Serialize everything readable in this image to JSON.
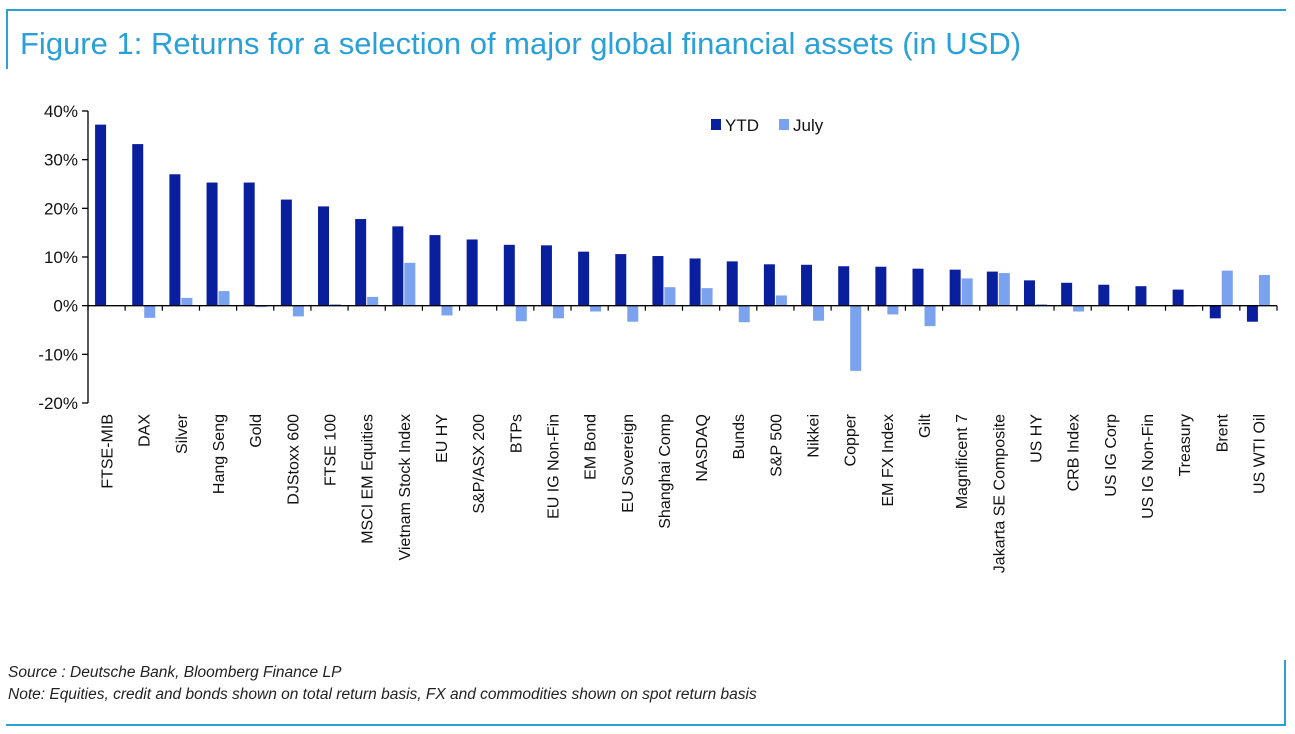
{
  "title": "Figure 1: Returns for a selection of major global financial assets (in USD)",
  "source": "Source : Deutsche Bank, Bloomberg Finance LP",
  "note": "Note: Equities, credit and bonds shown on total return basis, FX and commodities shown on spot return basis",
  "colors": {
    "accent": "#2aa0d8",
    "ytd": "#0a1f9e",
    "july": "#7aa2ee"
  },
  "chart_data": {
    "type": "bar",
    "title": "",
    "xlabel": "",
    "ylabel": "",
    "ylim": [
      -20,
      40
    ],
    "yticks": [
      40,
      30,
      20,
      10,
      0,
      -10,
      -20
    ],
    "ytick_labels": [
      "40%",
      "30%",
      "20%",
      "10%",
      "0%",
      "-10%",
      "-20%"
    ],
    "legend_position": "top-right",
    "grid": false,
    "categories": [
      "FTSE-MIB",
      "DAX",
      "Silver",
      "Hang Seng",
      "Gold",
      "DJStoxx 600",
      "FTSE 100",
      "MSCI EM Equities",
      "Vietnam Stock Index",
      "EU HY",
      "S&P/ASX 200",
      "BTPs",
      "EU IG Non-Fin",
      "EM Bond",
      "EU Sovereign",
      "Shanghai Comp",
      "NASDAQ",
      "Bunds",
      "S&P 500",
      "Nikkei",
      "Copper",
      "EM FX Index",
      "Gilt",
      "Magnificent 7",
      "Jakarta SE Composite",
      "US HY",
      "CRB Index",
      "US IG Corp",
      "US IG Non-Fin",
      "Treasury",
      "Brent",
      "US WTI Oil"
    ],
    "series": [
      {
        "name": "YTD",
        "values": [
          37.2,
          33.2,
          27.0,
          25.3,
          25.3,
          21.8,
          20.4,
          17.8,
          16.3,
          14.5,
          13.6,
          12.5,
          12.4,
          11.1,
          10.6,
          10.2,
          9.7,
          9.1,
          8.5,
          8.4,
          8.1,
          8.0,
          7.6,
          7.4,
          7.0,
          5.2,
          4.7,
          4.3,
          4.0,
          3.3,
          -2.6,
          -3.3
        ]
      },
      {
        "name": "July",
        "values": [
          0,
          -2.5,
          1.6,
          3.0,
          -0.3,
          -2.2,
          0.3,
          1.8,
          8.8,
          -2.0,
          0,
          -3.2,
          -2.6,
          -1.2,
          -3.3,
          3.8,
          3.6,
          -3.4,
          2.1,
          -3.1,
          -13.4,
          -1.8,
          -4.2,
          5.6,
          6.7,
          0.3,
          -1.2,
          0,
          0,
          -0.2,
          7.2,
          6.3
        ]
      }
    ]
  }
}
